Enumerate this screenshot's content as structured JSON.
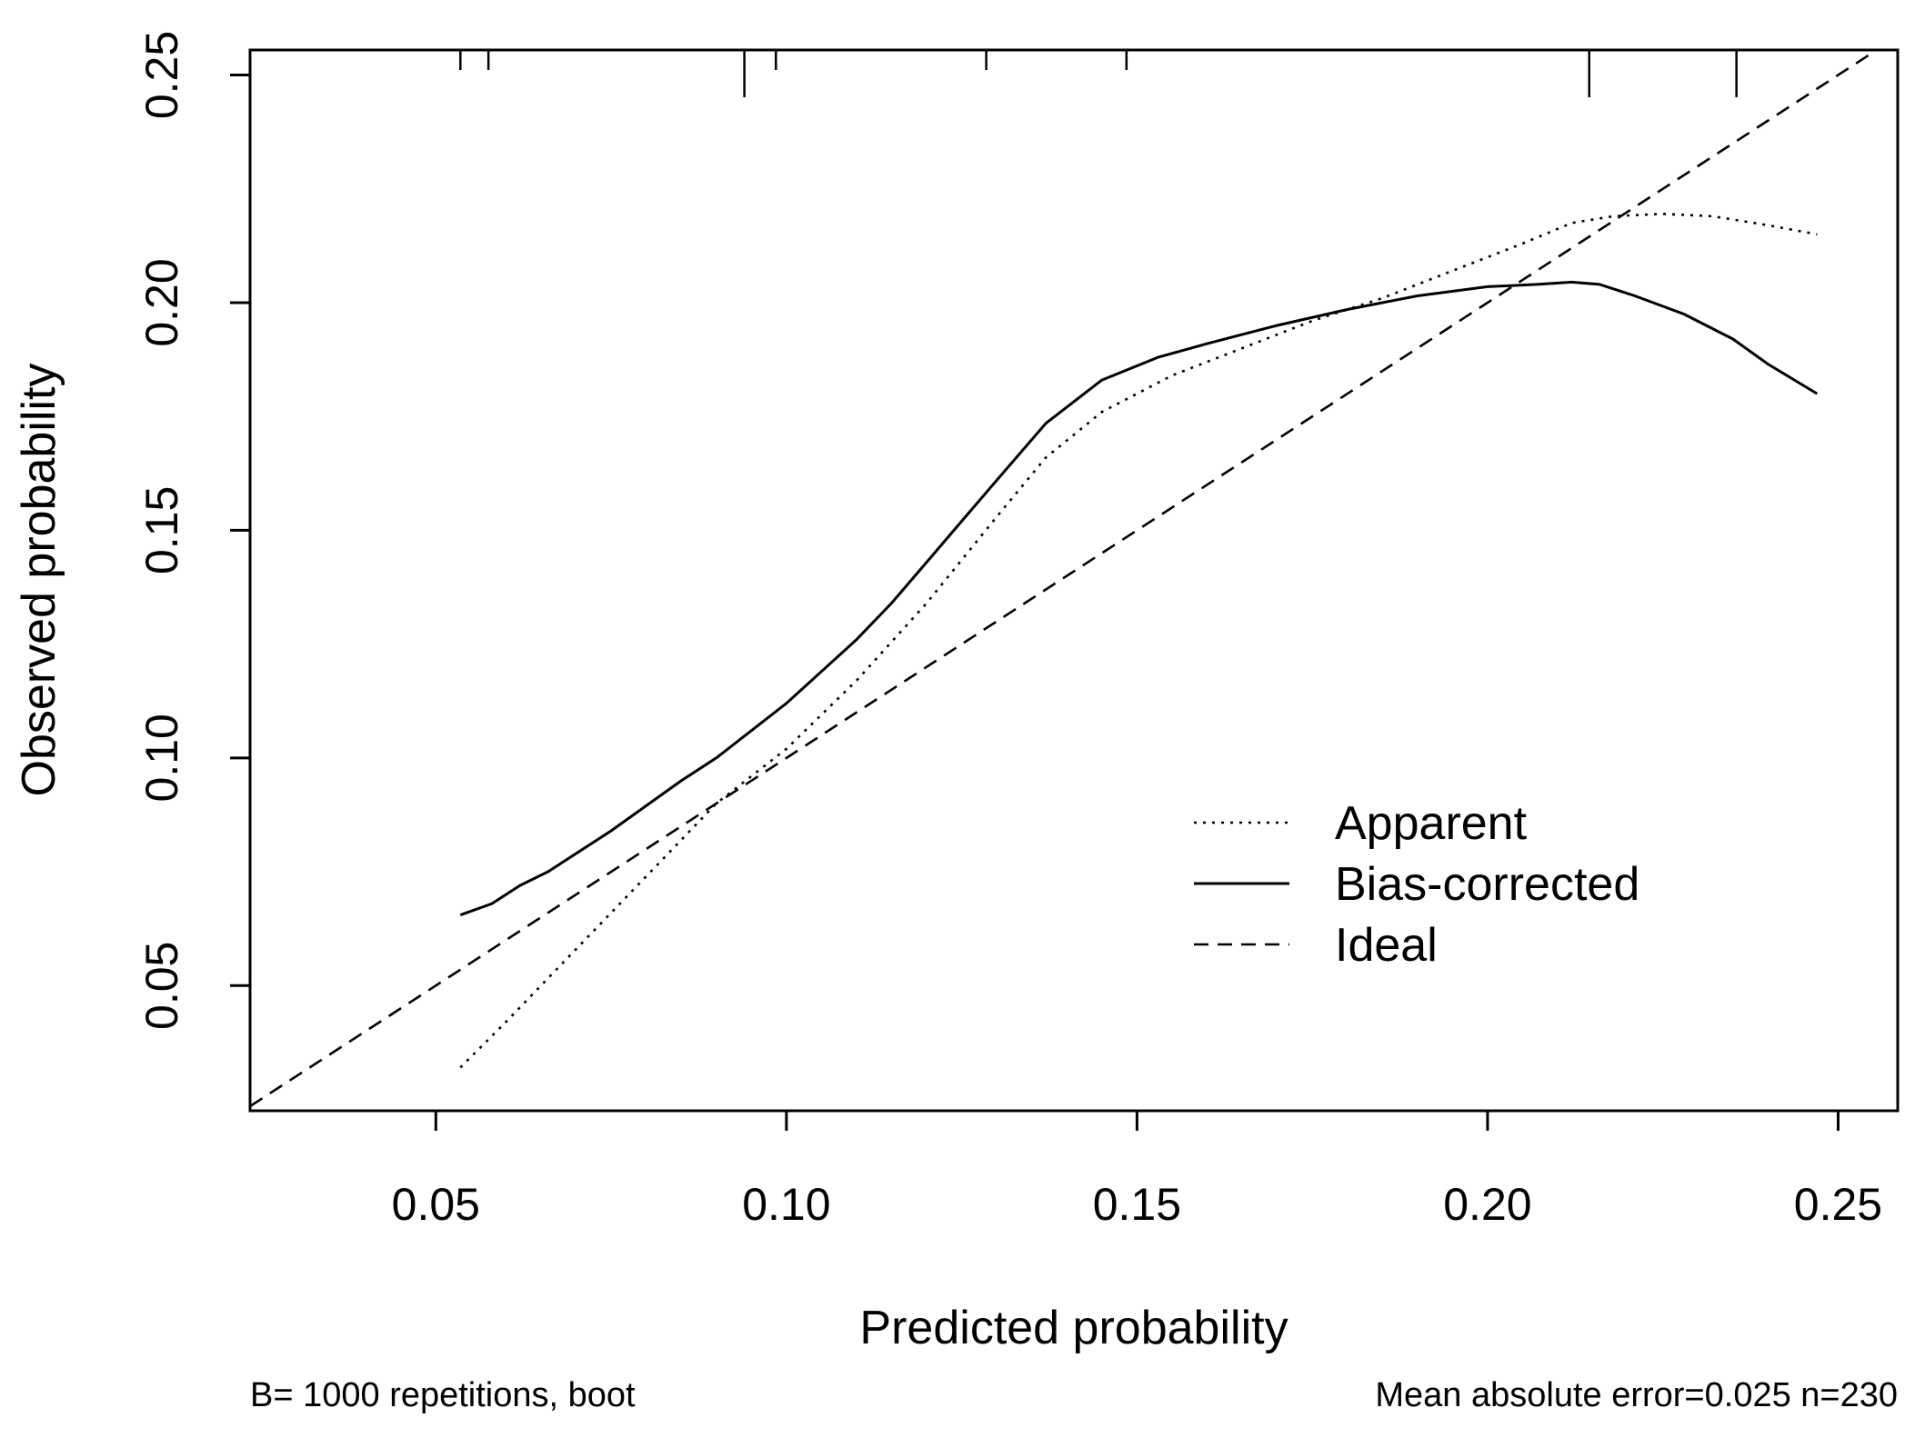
{
  "chart_data": {
    "type": "line",
    "title": "",
    "xlabel": "Predicted probability",
    "ylabel": "Observed probability",
    "xlim": [
      0.0235,
      0.2585
    ],
    "ylim": [
      0.0225,
      0.2555
    ],
    "x_ticks": [
      0.05,
      0.1,
      0.15,
      0.2,
      0.25
    ],
    "x_tick_labels": [
      "0.05",
      "0.10",
      "0.15",
      "0.20",
      "0.25"
    ],
    "y_ticks": [
      0.05,
      0.1,
      0.15,
      0.2,
      0.25
    ],
    "y_tick_labels": [
      "0.05",
      "0.10",
      "0.15",
      "0.20",
      "0.25"
    ],
    "grid": false,
    "legend_position": "bottom-right",
    "series": [
      {
        "name": "Apparent",
        "style": "dotted",
        "x": [
          0.0535,
          0.06,
          0.07,
          0.08,
          0.09,
          0.1,
          0.11,
          0.12,
          0.13,
          0.137,
          0.145,
          0.155,
          0.165,
          0.175,
          0.185,
          0.195,
          0.205,
          0.212,
          0.218,
          0.225,
          0.232,
          0.24,
          0.247
        ],
        "y": [
          0.032,
          0.042,
          0.058,
          0.074,
          0.09,
          0.102,
          0.117,
          0.134,
          0.153,
          0.166,
          0.176,
          0.184,
          0.19,
          0.196,
          0.201,
          0.207,
          0.213,
          0.2175,
          0.219,
          0.2195,
          0.219,
          0.217,
          0.215
        ]
      },
      {
        "name": "Bias-corrected",
        "style": "solid",
        "x": [
          0.0535,
          0.058,
          0.062,
          0.066,
          0.07,
          0.075,
          0.08,
          0.085,
          0.09,
          0.095,
          0.1,
          0.105,
          0.11,
          0.115,
          0.12,
          0.125,
          0.13,
          0.137,
          0.145,
          0.153,
          0.16,
          0.17,
          0.18,
          0.19,
          0.2,
          0.207,
          0.212,
          0.216,
          0.221,
          0.228,
          0.235,
          0.24,
          0.247
        ],
        "y": [
          0.0655,
          0.068,
          0.072,
          0.075,
          0.079,
          0.084,
          0.0895,
          0.095,
          0.1,
          0.106,
          0.112,
          0.119,
          0.126,
          0.134,
          0.143,
          0.152,
          0.161,
          0.1735,
          0.183,
          0.188,
          0.191,
          0.195,
          0.1985,
          0.2015,
          0.2035,
          0.204,
          0.2045,
          0.204,
          0.2015,
          0.1975,
          0.192,
          0.1865,
          0.18
        ]
      },
      {
        "name": "Ideal",
        "style": "dashed",
        "x": [
          0.0235,
          0.2585
        ],
        "y": [
          0.0235,
          0.2585
        ]
      }
    ],
    "rug_top": {
      "x": [
        0.0535,
        0.0575,
        0.094,
        0.0985,
        0.1285,
        0.1485,
        0.2145,
        0.2355
      ],
      "long": [
        false,
        false,
        true,
        false,
        false,
        false,
        true,
        true
      ]
    },
    "legend": [
      {
        "label": "Apparent",
        "style": "dotted"
      },
      {
        "label": "Bias-corrected",
        "style": "solid"
      },
      {
        "label": "Ideal",
        "style": "dashed"
      }
    ],
    "footnote_left": "B= 1000 repetitions, boot",
    "footnote_right": "Mean absolute error=0.025 n=230"
  }
}
